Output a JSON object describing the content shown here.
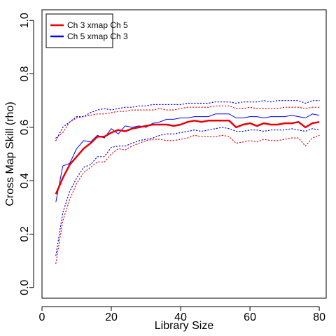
{
  "chart_data": {
    "type": "line",
    "title": "",
    "xlabel": "Library Size",
    "ylabel": "Cross Map Skill (rho)",
    "xlim": [
      0,
      82
    ],
    "ylim": [
      -0.04,
      1.04
    ],
    "xticks": [
      0,
      20,
      40,
      60,
      80
    ],
    "xtick_labels": [
      "0",
      "20",
      "40",
      "60",
      "80"
    ],
    "yticks": [
      0.0,
      0.2,
      0.4,
      0.6,
      0.8,
      1.0
    ],
    "ytick_labels": [
      "0.0",
      "0.2",
      "0.4",
      "0.6",
      "0.8",
      "1.0"
    ],
    "grid": false,
    "legend_position": "top-left",
    "x": [
      4,
      6,
      8,
      10,
      12,
      14,
      16,
      18,
      20,
      22,
      24,
      26,
      28,
      30,
      32,
      34,
      36,
      38,
      40,
      42,
      44,
      46,
      48,
      50,
      52,
      54,
      56,
      58,
      60,
      62,
      64,
      66,
      68,
      70,
      72,
      74,
      76,
      78,
      80
    ],
    "series": [
      {
        "name": "Ch 3 xmap Ch 5",
        "color": "#e8000b",
        "values": [
          0.35,
          0.41,
          0.46,
          0.49,
          0.52,
          0.54,
          0.565,
          0.565,
          0.58,
          0.59,
          0.585,
          0.595,
          0.6,
          0.605,
          0.61,
          0.61,
          0.61,
          0.605,
          0.61,
          0.62,
          0.625,
          0.62,
          0.625,
          0.625,
          0.625,
          0.625,
          0.6,
          0.61,
          0.615,
          0.605,
          0.615,
          0.61,
          0.61,
          0.615,
          0.615,
          0.62,
          0.6,
          0.615,
          0.62
        ],
        "lower": [
          0.09,
          0.25,
          0.33,
          0.39,
          0.43,
          0.45,
          0.47,
          0.47,
          0.5,
          0.52,
          0.515,
          0.53,
          0.54,
          0.55,
          0.555,
          0.555,
          0.55,
          0.55,
          0.555,
          0.56,
          0.57,
          0.565,
          0.565,
          0.565,
          0.57,
          0.565,
          0.54,
          0.545,
          0.55,
          0.545,
          0.555,
          0.55,
          0.55,
          0.555,
          0.56,
          0.56,
          0.53,
          0.56,
          0.57
        ],
        "upper": [
          0.56,
          0.58,
          0.62,
          0.635,
          0.64,
          0.645,
          0.65,
          0.65,
          0.655,
          0.66,
          0.66,
          0.665,
          0.665,
          0.665,
          0.665,
          0.67,
          0.665,
          0.665,
          0.67,
          0.675,
          0.675,
          0.675,
          0.675,
          0.68,
          0.68,
          0.68,
          0.67,
          0.67,
          0.675,
          0.67,
          0.67,
          0.67,
          0.67,
          0.675,
          0.675,
          0.675,
          0.67,
          0.675,
          0.675
        ]
      },
      {
        "name": "Ch 5  xmap Ch 3",
        "color": "#0000ff",
        "values": [
          0.32,
          0.455,
          0.465,
          0.52,
          0.55,
          0.545,
          0.57,
          0.56,
          0.595,
          0.575,
          0.605,
          0.6,
          0.605,
          0.6,
          0.615,
          0.62,
          0.63,
          0.63,
          0.635,
          0.635,
          0.64,
          0.64,
          0.64,
          0.65,
          0.65,
          0.65,
          0.635,
          0.635,
          0.64,
          0.64,
          0.635,
          0.64,
          0.64,
          0.64,
          0.645,
          0.64,
          0.635,
          0.65,
          0.645
        ],
        "lower": [
          0.12,
          0.28,
          0.36,
          0.41,
          0.45,
          0.46,
          0.49,
          0.49,
          0.525,
          0.53,
          0.53,
          0.54,
          0.55,
          0.555,
          0.56,
          0.57,
          0.575,
          0.575,
          0.58,
          0.585,
          0.59,
          0.585,
          0.59,
          0.595,
          0.6,
          0.595,
          0.585,
          0.585,
          0.59,
          0.59,
          0.585,
          0.59,
          0.59,
          0.59,
          0.595,
          0.59,
          0.585,
          0.595,
          0.59
        ],
        "upper": [
          0.55,
          0.6,
          0.62,
          0.64,
          0.64,
          0.655,
          0.665,
          0.67,
          0.665,
          0.67,
          0.675,
          0.675,
          0.68,
          0.68,
          0.685,
          0.685,
          0.685,
          0.685,
          0.685,
          0.69,
          0.69,
          0.69,
          0.69,
          0.695,
          0.695,
          0.695,
          0.69,
          0.695,
          0.695,
          0.695,
          0.7,
          0.695,
          0.7,
          0.7,
          0.7,
          0.7,
          0.69,
          0.7,
          0.7
        ]
      }
    ]
  }
}
